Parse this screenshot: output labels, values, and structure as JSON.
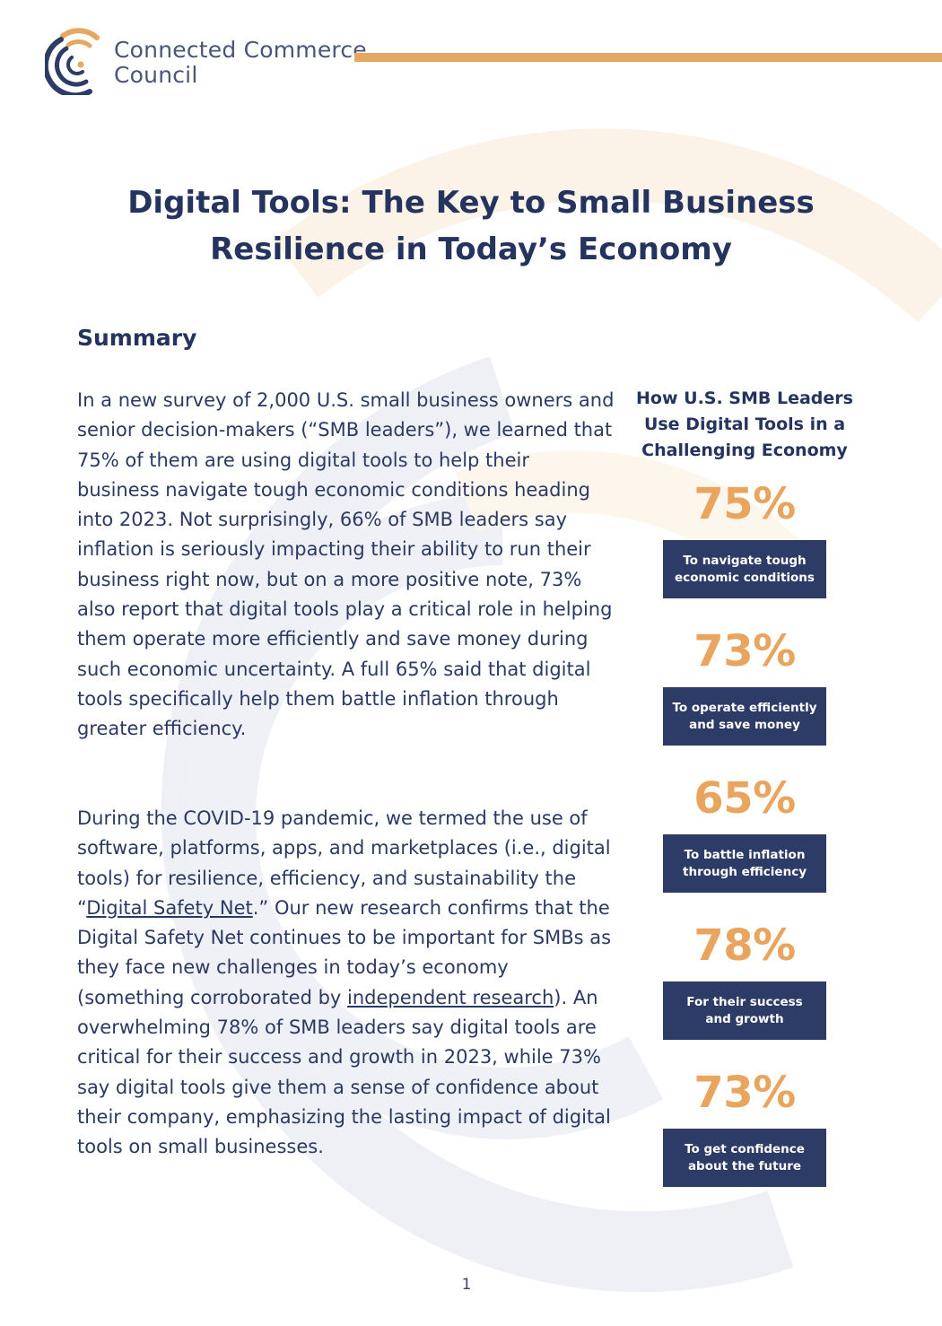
{
  "header": {
    "org_name_line1": "Connected Commerce",
    "org_name_line2": "Council",
    "accent_color": "#e5a761",
    "brand_color": "#2d3b67",
    "logo_icon": "broadcast-c-logo-icon"
  },
  "title": {
    "line1": "Digital Tools: The Key to Small Business",
    "line2": "Resilience in Today’s Economy"
  },
  "summary": {
    "heading": "Summary",
    "para1": "In a new survey of 2,000 U.S. small business owners and senior decision-makers (“SMB leaders”), we learned that 75% of them are using digital tools to help their business navigate tough economic conditions heading into 2023. Not surprisingly, 66% of SMB leaders say inflation is seriously impacting their ability to run their business right now, but on a more positive note, 73% also report that digital tools play a critical role in helping them operate more efficiently and save money during such economic uncertainty. A full 65% said that digital tools specifically help them battle inflation through greater efficiency.",
    "para2_part1": "During the COVID-19 pandemic, we termed the use of software, platforms, apps, and marketplaces (i.e., digital tools) for resilience, efficiency, and sustainability the “",
    "para2_link1": "Digital Safety Net",
    "para2_part2": ".” Our new research confirms that the Digital Safety Net continues to be important for SMBs as they face new challenges in today’s economy (something corroborated by ",
    "para2_link2": "independent research",
    "para2_part3": "). An overwhelming 78% of SMB leaders say digital tools are critical for their success and growth in 2023, while 73% say digital tools give them a sense of confidence about their company, emphasizing the lasting impact of digital tools on small businesses."
  },
  "sidebar": {
    "title_line1": "How U.S. SMB Leaders",
    "title_line2": "Use Digital Tools in a",
    "title_line3": "Challenging Economy",
    "stats": [
      {
        "value": "75%",
        "label_line1": "To navigate tough",
        "label_line2": "economic conditions"
      },
      {
        "value": "73%",
        "label_line1": "To operate efficiently",
        "label_line2": "and save money"
      },
      {
        "value": "65%",
        "label_line1": "To battle inflation",
        "label_line2": "through efficiency"
      },
      {
        "value": "78%",
        "label_line1": "For their success",
        "label_line2": "and growth"
      },
      {
        "value": "73%",
        "label_line1": "To get confidence",
        "label_line2": "about the future"
      }
    ],
    "value_color": "#e9a45d"
  },
  "footer": {
    "page_number": "1"
  }
}
